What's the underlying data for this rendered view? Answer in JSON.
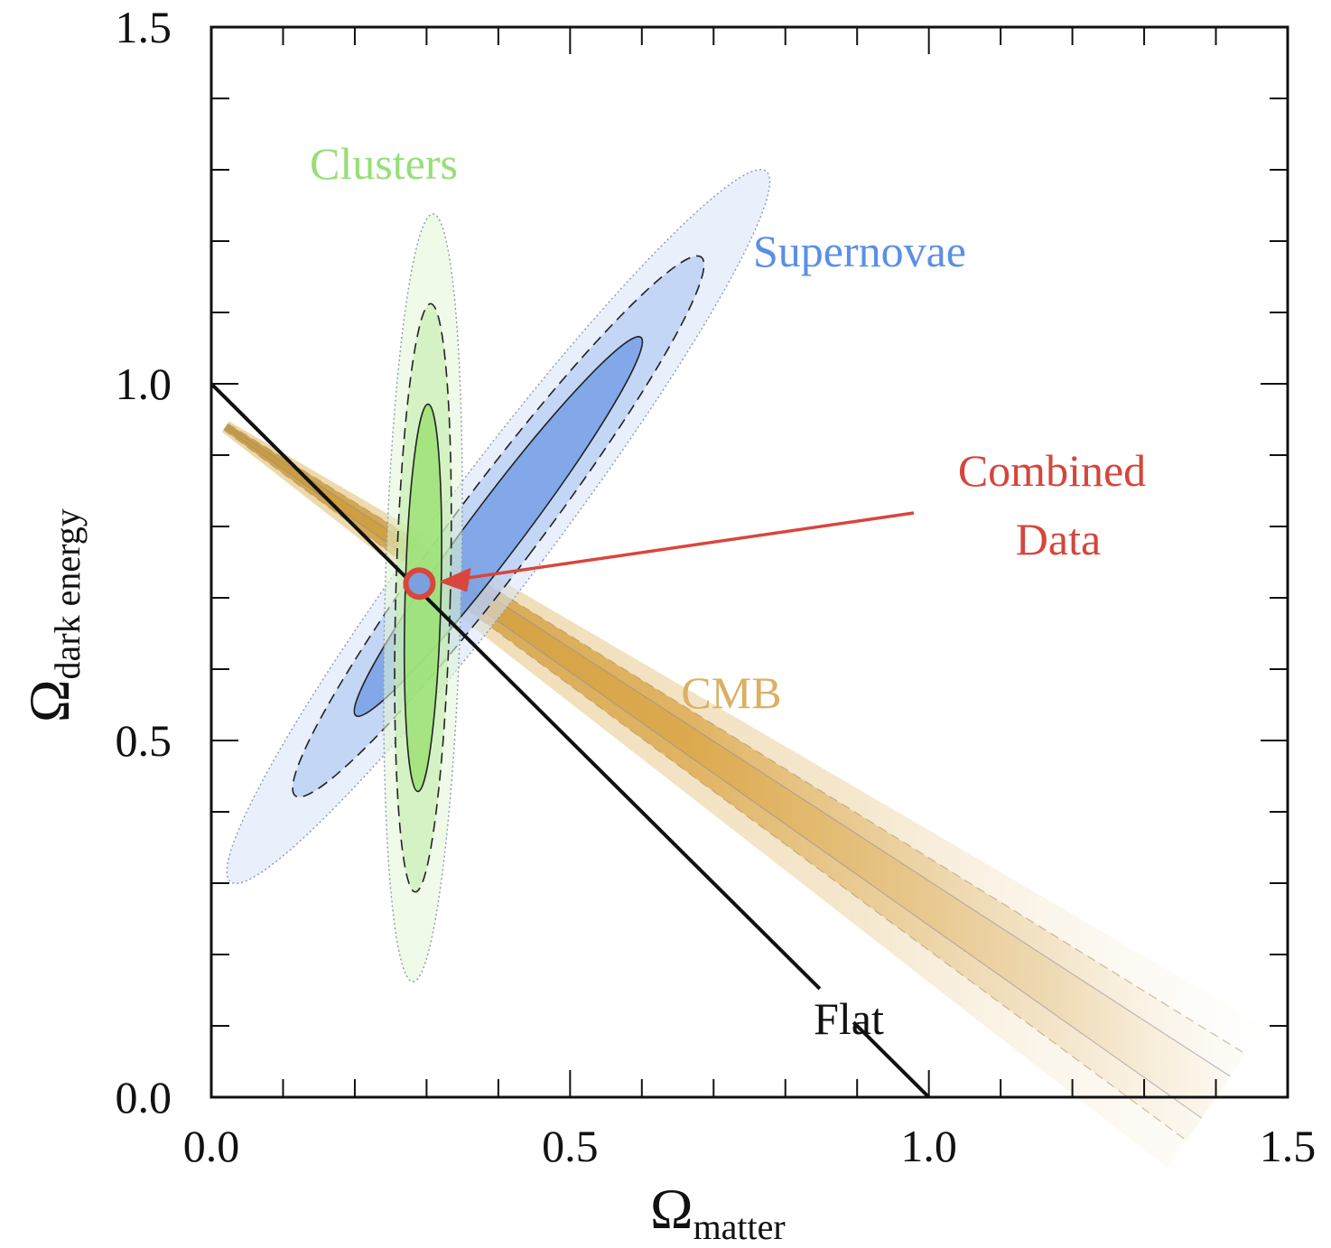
{
  "chart_data": {
    "type": "scatter",
    "title": "",
    "xlabel": {
      "symbol": "Ω",
      "subscript": "matter"
    },
    "ylabel": {
      "symbol": "Ω",
      "subscript": "dark energy"
    },
    "xlim": [
      0.0,
      1.5
    ],
    "ylim": [
      0.0,
      1.5
    ],
    "x_tick_labels": [
      "0.0",
      "0.5",
      "1.0",
      "1.5"
    ],
    "y_tick_labels": [
      "0.0",
      "0.5",
      "1.0",
      "1.5"
    ],
    "minor_tick_step": 0.1,
    "grid": false,
    "flat_line": {
      "label": "Flat",
      "from": [
        0.0,
        1.0
      ],
      "to": [
        1.0,
        0.0
      ]
    },
    "regions": [
      {
        "name": "Supernovae",
        "color": "#6f9be6",
        "center": [
          0.4,
          0.8
        ],
        "contours": [
          {
            "level": "outer",
            "half_width": 0.078,
            "half_length": 0.62,
            "style": "dotted"
          },
          {
            "level": "middle",
            "half_width": 0.058,
            "half_length": 0.47,
            "style": "dashed"
          },
          {
            "level": "inner",
            "half_width": 0.037,
            "half_length": 0.33,
            "style": "solid"
          }
        ]
      },
      {
        "name": "Clusters",
        "color": "#97e06e",
        "center": [
          0.295,
          0.7
        ],
        "contours": [
          {
            "level": "outer",
            "half_width": 0.053,
            "half_length": 0.535,
            "style": "dotted"
          },
          {
            "level": "middle",
            "half_width": 0.038,
            "half_length": 0.41,
            "style": "dashed"
          },
          {
            "level": "inner",
            "half_width": 0.025,
            "half_length": 0.27,
            "style": "solid"
          }
        ]
      },
      {
        "name": "CMB",
        "color": "#e2b257",
        "band_from": [
          0.02,
          0.94
        ],
        "band_to": [
          1.4,
          0.0
        ]
      }
    ],
    "combined": {
      "name": "Combined Data",
      "label_lines": [
        "Combined",
        "Data"
      ],
      "point": [
        0.29,
        0.72
      ],
      "color": "#d8463d"
    },
    "label_colors": {
      "Clusters": "#95e076",
      "Supernovae": "#5b8fe6",
      "CMB": "#dbb061",
      "Combined Data": "#d4463c",
      "Flat": "#111111"
    }
  }
}
